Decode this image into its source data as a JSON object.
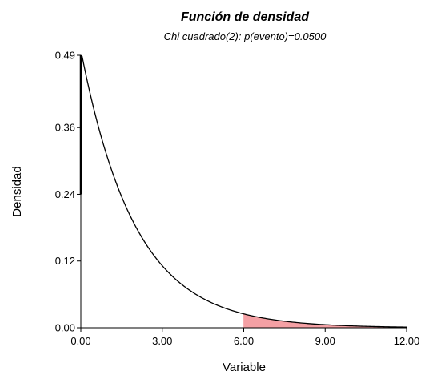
{
  "chart_data": {
    "type": "area",
    "title": "Función de densidad",
    "subtitle": "Chi cuadrado(2): p(evento)=0.0500",
    "xlabel": "Variable",
    "ylabel": "Densidad",
    "xlim": [
      0,
      12
    ],
    "ylim": [
      0,
      0.49
    ],
    "x_ticks": [
      0,
      3,
      6,
      9,
      12
    ],
    "x_tick_labels": [
      "0.00",
      "3.00",
      "6.00",
      "9.00",
      "12.00"
    ],
    "y_ticks": [
      0,
      0.12,
      0.24,
      0.36,
      0.49
    ],
    "y_tick_labels": [
      "0.00",
      "0.12",
      "0.24",
      "0.36",
      "0.49"
    ],
    "grid": false,
    "series": [
      {
        "x": [
          0,
          0.5,
          1,
          1.5,
          2,
          2.5,
          3,
          3.5,
          4,
          4.5,
          5,
          5.5,
          6,
          6.5,
          7,
          7.5,
          8,
          8.5,
          9,
          9.5,
          10,
          10.5,
          11,
          11.5,
          12
        ],
        "y": [
          0.5,
          0.389,
          0.303,
          0.236,
          0.184,
          0.143,
          0.112,
          0.087,
          0.068,
          0.053,
          0.041,
          0.032,
          0.025,
          0.019,
          0.015,
          0.012,
          0.009,
          0.007,
          0.006,
          0.004,
          0.003,
          0.003,
          0.002,
          0.002,
          0.001
        ],
        "color": "#000000"
      }
    ],
    "shaded_region": {
      "x_from": 5.99,
      "x_to": 12,
      "probability": 0.05,
      "color": "#f4a0a4"
    }
  }
}
